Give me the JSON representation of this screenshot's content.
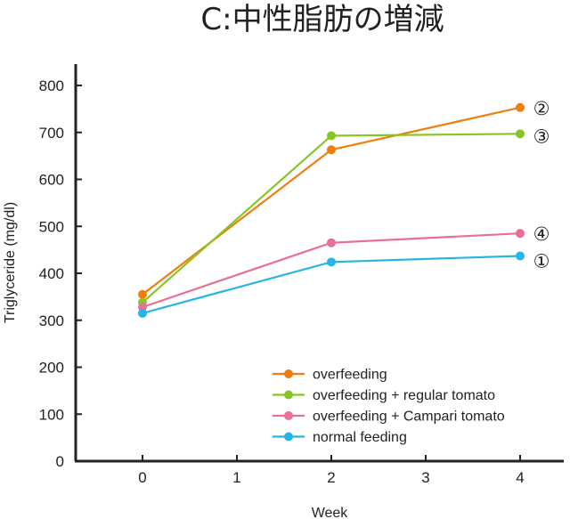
{
  "chart_data": {
    "type": "line",
    "title": "C:中性脂肪の増減",
    "xlabel": "Week",
    "ylabel": "Triglyceride (mg/dl)",
    "x": [
      0,
      2,
      4
    ],
    "xticks": [
      "0",
      "1",
      "2",
      "3",
      "4"
    ],
    "xlim": [
      -0.7,
      4.5
    ],
    "yticks": [
      "0",
      "100",
      "200",
      "300",
      "400",
      "500",
      "600",
      "700",
      "800"
    ],
    "ylim": [
      0,
      800
    ],
    "legend_position": "bottom-right",
    "series": [
      {
        "name": "overfeeding",
        "color": "#f07e0f",
        "values": [
          355,
          663,
          753
        ],
        "marker_label": "②"
      },
      {
        "name": "overfeeding + regular tomato",
        "color": "#86c624",
        "values": [
          338,
          693,
          697
        ],
        "marker_label": "③"
      },
      {
        "name": "overfeeding + Campari tomato",
        "color": "#e86f95",
        "values": [
          328,
          465,
          485
        ],
        "marker_label": "④"
      },
      {
        "name": "normal feeding",
        "color": "#25b5e6",
        "values": [
          315,
          424,
          437
        ],
        "marker_label": "①"
      }
    ]
  }
}
